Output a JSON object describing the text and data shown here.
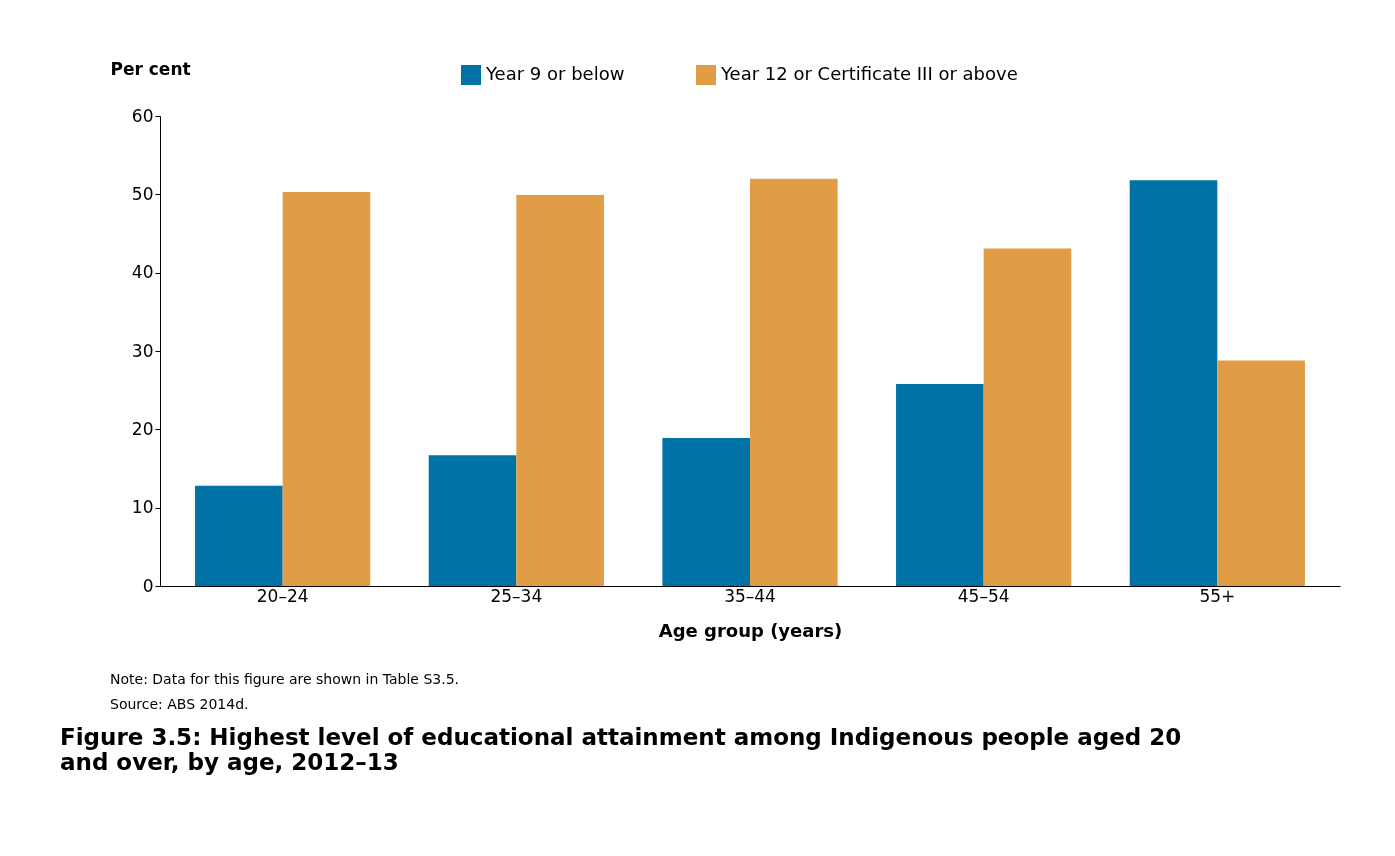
{
  "chart_data": {
    "type": "bar",
    "title": "Figure 3.5: Highest level of educational attainment among Indigenous people aged 20 and over, by age, 2012–13",
    "xlabel": "Age group (years)",
    "ylabel": "Per cent",
    "categories": [
      "20–24",
      "25–34",
      "35–44",
      "45–54",
      "55+"
    ],
    "series": [
      {
        "name": "Year 9 or below",
        "color": "#0072a6",
        "values": [
          12.8,
          16.7,
          18.9,
          25.8,
          51.8
        ]
      },
      {
        "name": "Year 12 or Certificate III or above",
        "color": "#e09d45",
        "values": [
          50.3,
          49.9,
          52.0,
          43.1,
          28.8
        ]
      }
    ],
    "ylim": [
      0,
      60
    ],
    "yticks": [
      0,
      10,
      20,
      30,
      40,
      50,
      60
    ],
    "grid": false,
    "legend": "top",
    "annotations": [
      "Note: Data for this figure are shown in Table S3.5.",
      "Source: ABS 2014d."
    ]
  }
}
